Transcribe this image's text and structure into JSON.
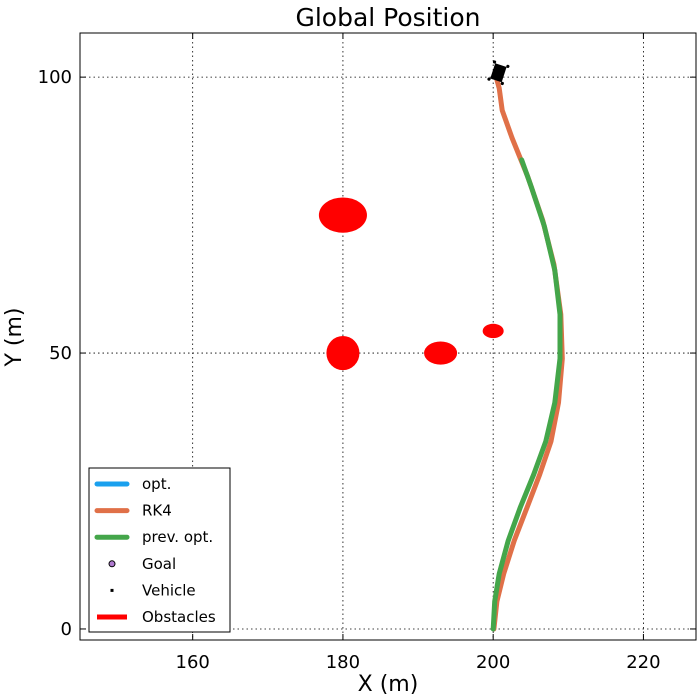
{
  "chart_data": {
    "type": "line",
    "title": "Global Position",
    "xlabel": "X (m)",
    "ylabel": "Y (m)",
    "xlim": [
      145,
      227
    ],
    "ylim": [
      -2,
      108
    ],
    "xticks": [
      160,
      180,
      200,
      220
    ],
    "yticks": [
      0,
      50,
      100
    ],
    "grid": true,
    "legend_position": "lower-left",
    "series": [
      {
        "name": "opt.",
        "color": "#1aa0ee",
        "x": [],
        "y": []
      },
      {
        "name": "RK4",
        "color": "#e07048",
        "x": [
          200.1,
          200.5,
          201.4,
          202.8,
          204.5,
          206.2,
          207.7,
          208.7,
          209.2,
          209.0,
          208.1,
          206.6,
          204.6,
          202.5,
          201.2,
          200.8,
          200.4
        ],
        "y": [
          0,
          5,
          10,
          16,
          22,
          28,
          34,
          41,
          49,
          57,
          66,
          74,
          82,
          89,
          94,
          98,
          100
        ]
      },
      {
        "name": "prev. opt.",
        "color": "#44a64a",
        "x": [
          200.0,
          200.2,
          200.8,
          202.0,
          203.6,
          205.4,
          207.0,
          208.2,
          208.9,
          208.9,
          208.2,
          206.8,
          205.1,
          203.8
        ],
        "y": [
          0,
          5,
          10,
          16,
          22,
          28,
          34,
          41,
          49,
          57,
          65,
          73,
          80,
          85
        ]
      }
    ],
    "goal": {
      "name": "Goal",
      "color": "#b07ad0",
      "x": [
        200.8
      ],
      "y": [
        100.5
      ]
    },
    "vehicle": {
      "name": "Vehicle",
      "color": "#000000",
      "x": [
        200.7
      ],
      "y": [
        100.8
      ],
      "heading_deg": 18
    },
    "obstacles": {
      "name": "Obstacles",
      "color": "#ff0000",
      "items": [
        {
          "x": 180,
          "y": 75,
          "rx": 3.2,
          "ry": 3.2
        },
        {
          "x": 180,
          "y": 50,
          "rx": 2.2,
          "ry": 3.1
        },
        {
          "x": 193,
          "y": 50,
          "rx": 2.2,
          "ry": 2.1
        },
        {
          "x": 200,
          "y": 54,
          "rx": 1.4,
          "ry": 1.3
        }
      ]
    }
  }
}
